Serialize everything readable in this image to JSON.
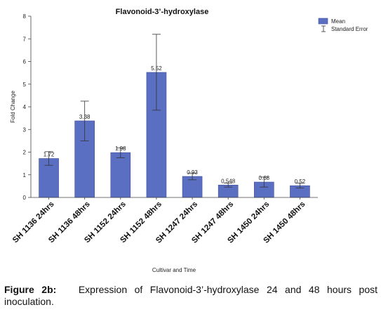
{
  "chart_data": {
    "type": "bar",
    "title": "Flavonoid-3’-hydroxylase",
    "xlabel": "Cultivar and Time",
    "ylabel": "Fold Change",
    "ylim": [
      0,
      8
    ],
    "y_ticks": [
      "0",
      "1",
      "2",
      "3",
      "4",
      "5",
      "6",
      "7",
      "8"
    ],
    "categories": [
      "SH 1136 24hrs",
      "SH 1136 48hrs",
      "SH 1152 24hrs",
      "SH 1152 48hrs",
      "SH 1247 24hrs",
      "SH 1247 48hrs",
      "SH 1450 24hrs",
      "SH 1450 48hrs"
    ],
    "series": [
      {
        "name": "Mean",
        "values": [
          1.72,
          3.38,
          1.98,
          5.52,
          0.93,
          0.548,
          0.68,
          0.52
        ],
        "value_labels": [
          "1.72",
          "3.38",
          "1.98",
          "5.52",
          "0.93",
          "0.548",
          "0.68",
          "0.52"
        ],
        "error_low": [
          1.42,
          2.5,
          1.75,
          3.85,
          0.78,
          0.46,
          0.46,
          0.42
        ],
        "error_high": [
          2.02,
          4.25,
          2.18,
          7.2,
          1.08,
          0.63,
          0.9,
          0.63
        ],
        "color": "#5b6fc2"
      }
    ],
    "error_label": "Standard Error",
    "grid": false,
    "legend_position": "top-right",
    "colors": {
      "bar": "#5b6fc2",
      "bar_stroke": "#3f4f9a",
      "axis": "#444444",
      "error": "#333333"
    }
  },
  "caption": {
    "lead": "Figure 2b:",
    "text": "Expression of Flavonoid-3’-hydroxylase 24 and 48 hours post inoculation."
  }
}
